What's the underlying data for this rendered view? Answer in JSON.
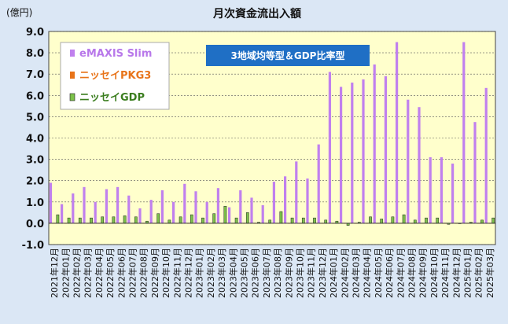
{
  "chart_data": {
    "type": "bar",
    "title": "月次資金流出入額",
    "ylabel": "(億円)",
    "ylim": [
      -1.0,
      9.0
    ],
    "yticks": [
      "-1.0",
      "0.0",
      "1.0",
      "2.0",
      "3.0",
      "4.0",
      "5.0",
      "6.0",
      "7.0",
      "8.0",
      "9.0"
    ],
    "grid": true,
    "legend_position": "top-left",
    "annotation": "3地域均等型＆GDP比率型",
    "colors": {
      "plot_bg": "#ffffcc",
      "frame_bg": "#dbe7f5",
      "annotation_bg": "#1f6fc5",
      "legend_bg": "#ffffff"
    },
    "categories": [
      "2021年12月",
      "2022年01月",
      "2022年02月",
      "2022年03月",
      "2022年04月",
      "2022年05月",
      "2022年06月",
      "2022年07月",
      "2022年08月",
      "2022年09月",
      "2022年10月",
      "2022年11月",
      "2022年12月",
      "2023年01月",
      "2023年02月",
      "2023年03月",
      "2023年04月",
      "2023年05月",
      "2023年06月",
      "2023年07月",
      "2023年08月",
      "2023年09月",
      "2023年10月",
      "2023年11月",
      "2023年12月",
      "2024年01月",
      "2024年02月",
      "2024年03月",
      "2024年04月",
      "2024年05月",
      "2024年06月",
      "2024年07月",
      "2024年08月",
      "2024年09月",
      "2024年10月",
      "2024年11月",
      "2024年12月",
      "2025年01月",
      "2025年02月",
      "2025年03月"
    ],
    "series": [
      {
        "name": "eMAXIS Slim",
        "color": "#c080ee",
        "values": [
          1.9,
          0.9,
          1.4,
          1.7,
          1.0,
          1.6,
          1.7,
          1.3,
          0.7,
          1.1,
          1.55,
          1.0,
          1.85,
          1.5,
          1.0,
          1.65,
          0.75,
          1.55,
          1.2,
          0.85,
          1.95,
          2.2,
          2.9,
          2.1,
          3.7,
          7.1,
          6.4,
          6.6,
          6.75,
          7.45,
          6.9,
          8.5,
          5.8,
          5.45,
          3.1,
          3.1,
          2.8,
          8.5,
          4.75,
          6.35
        ]
      },
      {
        "name": "ニッセイPKG3",
        "color": "#e8741a",
        "values": [
          0.0,
          0.0,
          0.0,
          0.0,
          0.0,
          0.0,
          0.0,
          0.0,
          0.0,
          0.0,
          0.0,
          0.0,
          0.0,
          0.0,
          0.0,
          0.0,
          0.0,
          0.0,
          0.0,
          0.0,
          0.0,
          0.0,
          0.0,
          0.0,
          0.0,
          0.0,
          0.0,
          0.0,
          0.0,
          0.0,
          0.0,
          0.0,
          0.0,
          0.0,
          0.0,
          0.0,
          0.0,
          0.0,
          0.0,
          0.0
        ]
      },
      {
        "name": "ニッセイGDP",
        "color": "#7cc24a",
        "values": [
          0.4,
          0.25,
          0.25,
          0.25,
          0.3,
          0.3,
          0.35,
          0.3,
          0.1,
          0.45,
          0.15,
          0.3,
          0.4,
          0.25,
          0.45,
          0.8,
          0.25,
          0.5,
          0.05,
          0.15,
          0.55,
          0.25,
          0.25,
          0.25,
          0.15,
          0.1,
          -0.1,
          0.05,
          0.3,
          0.2,
          0.3,
          0.4,
          0.15,
          0.25,
          0.25,
          -0.05,
          0.0,
          0.05,
          0.15,
          0.25
        ]
      }
    ]
  }
}
